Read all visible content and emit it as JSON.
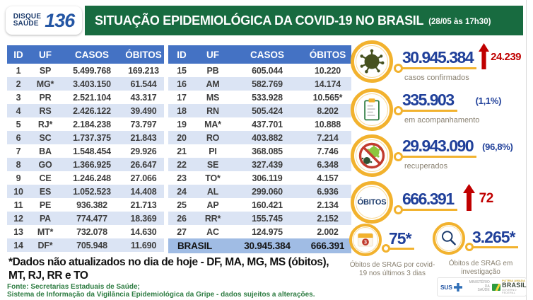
{
  "header": {
    "logo": {
      "line1": "DISQUE",
      "line2": "SAÚDE",
      "number": "136"
    },
    "title": "SITUAÇÃO EPIDEMIOLÓGICA DA COVID-19 NO BRASIL",
    "timestamp": "(28/05 às 17h30)"
  },
  "table": {
    "headers": [
      "ID",
      "UF",
      "CASOS",
      "ÓBITOS"
    ],
    "left_rows": [
      {
        "id": "1",
        "uf": "SP",
        "casos": "5.499.768",
        "obitos": "169.213"
      },
      {
        "id": "2",
        "uf": "MG*",
        "casos": "3.403.150",
        "obitos": "61.544"
      },
      {
        "id": "3",
        "uf": "PR",
        "casos": "2.521.104",
        "obitos": "43.317"
      },
      {
        "id": "4",
        "uf": "RS",
        "casos": "2.426.122",
        "obitos": "39.490"
      },
      {
        "id": "5",
        "uf": "RJ*",
        "casos": "2.184.238",
        "obitos": "73.797"
      },
      {
        "id": "6",
        "uf": "SC",
        "casos": "1.737.375",
        "obitos": "21.843"
      },
      {
        "id": "7",
        "uf": "BA",
        "casos": "1.548.454",
        "obitos": "29.926"
      },
      {
        "id": "8",
        "uf": "GO",
        "casos": "1.366.925",
        "obitos": "26.647"
      },
      {
        "id": "9",
        "uf": "CE",
        "casos": "1.246.248",
        "obitos": "27.066"
      },
      {
        "id": "10",
        "uf": "ES",
        "casos": "1.052.523",
        "obitos": "14.408"
      },
      {
        "id": "11",
        "uf": "PE",
        "casos": "936.382",
        "obitos": "21.713"
      },
      {
        "id": "12",
        "uf": "PA",
        "casos": "774.477",
        "obitos": "18.369"
      },
      {
        "id": "13",
        "uf": "MT*",
        "casos": "732.078",
        "obitos": "14.630"
      },
      {
        "id": "14",
        "uf": "DF*",
        "casos": "705.948",
        "obitos": "11.690"
      }
    ],
    "right_rows": [
      {
        "id": "15",
        "uf": "PB",
        "casos": "605.044",
        "obitos": "10.220"
      },
      {
        "id": "16",
        "uf": "AM",
        "casos": "582.769",
        "obitos": "14.174"
      },
      {
        "id": "17",
        "uf": "MS",
        "casos": "533.928",
        "obitos": "10.565*"
      },
      {
        "id": "18",
        "uf": "RN",
        "casos": "505.424",
        "obitos": "8.202"
      },
      {
        "id": "19",
        "uf": "MA*",
        "casos": "437.701",
        "obitos": "10.888"
      },
      {
        "id": "20",
        "uf": "RO",
        "casos": "403.882",
        "obitos": "7.214"
      },
      {
        "id": "21",
        "uf": "PI",
        "casos": "368.085",
        "obitos": "7.746"
      },
      {
        "id": "22",
        "uf": "SE",
        "casos": "327.439",
        "obitos": "6.348"
      },
      {
        "id": "23",
        "uf": "TO*",
        "casos": "306.119",
        "obitos": "4.157"
      },
      {
        "id": "24",
        "uf": "AL",
        "casos": "299.060",
        "obitos": "6.936"
      },
      {
        "id": "25",
        "uf": "AP",
        "casos": "160.421",
        "obitos": "2.134"
      },
      {
        "id": "26",
        "uf": "RR*",
        "casos": "155.745",
        "obitos": "2.152"
      },
      {
        "id": "27",
        "uf": "AC",
        "casos": "124.975",
        "obitos": "2.002"
      }
    ],
    "total": {
      "label": "BRASIL",
      "casos": "30.945.384",
      "obitos": "666.391"
    }
  },
  "stats": {
    "confirmed": {
      "value": "30.945.384",
      "delta": "24.239",
      "label": "casos confirmados"
    },
    "monitoring": {
      "value": "335.903",
      "percent": "(1,1%)",
      "label": "em acompanhamento"
    },
    "recovered": {
      "value": "29.943.090",
      "percent": "(96,8%)",
      "label": "recuperados"
    },
    "deaths": {
      "icon_label": "ÓBITOS",
      "value": "666.391",
      "delta": "72"
    },
    "srag_deaths": {
      "value": "75*",
      "badge": "3",
      "label": "Óbitos de SRAG por covid-19 nos últimos 3 dias"
    },
    "srag_investigation": {
      "value": "3.265*",
      "label": "Óbitos de SRAG em investigação"
    }
  },
  "footnote": {
    "line1": "*Dados não atualizados no dia de hoje - DF, MA, MG, MS (óbitos),",
    "line2": "MT, RJ, RR e TO"
  },
  "source": {
    "line1": "Fonte: Secretarias Estaduais de Saúde;",
    "line2": "Sistema de Informação da Vigilância Epidemiológica da Gripe - dados sujeitos a alterações."
  },
  "gov": {
    "sus": "SUS",
    "ministry_line1": "MINISTÉRIO DA",
    "ministry_line2": "SAÚDE",
    "brand_top": "PÁTRIA AMADA",
    "brand": "BRASIL",
    "brand_bottom": "GOVERNO FEDERAL"
  },
  "colors": {
    "banner_green": "#186b40",
    "table_header_blue": "#4472c4",
    "row_stripe_blue": "#dbe4f4",
    "total_row_blue": "#a0bce4",
    "number_navy": "#20409a",
    "alert_red": "#c00000",
    "accent_yellow": "#f2b22e",
    "source_green": "#2f7d43"
  },
  "chart_data": {
    "type": "table",
    "title": "SITUAÇÃO EPIDEMIOLÓGICA DA COVID-19 NO BRASIL (28/05 às 17h30)",
    "columns": [
      "ID",
      "UF",
      "CASOS",
      "ÓBITOS"
    ],
    "rows": [
      [
        1,
        "SP",
        "5.499.768",
        "169.213"
      ],
      [
        2,
        "MG*",
        "3.403.150",
        "61.544"
      ],
      [
        3,
        "PR",
        "2.521.104",
        "43.317"
      ],
      [
        4,
        "RS",
        "2.426.122",
        "39.490"
      ],
      [
        5,
        "RJ*",
        "2.184.238",
        "73.797"
      ],
      [
        6,
        "SC",
        "1.737.375",
        "21.843"
      ],
      [
        7,
        "BA",
        "1.548.454",
        "29.926"
      ],
      [
        8,
        "GO",
        "1.366.925",
        "26.647"
      ],
      [
        9,
        "CE",
        "1.246.248",
        "27.066"
      ],
      [
        10,
        "ES",
        "1.052.523",
        "14.408"
      ],
      [
        11,
        "PE",
        "936.382",
        "21.713"
      ],
      [
        12,
        "PA",
        "774.477",
        "18.369"
      ],
      [
        13,
        "MT*",
        "732.078",
        "14.630"
      ],
      [
        14,
        "DF*",
        "705.948",
        "11.690"
      ],
      [
        15,
        "PB",
        "605.044",
        "10.220"
      ],
      [
        16,
        "AM",
        "582.769",
        "14.174"
      ],
      [
        17,
        "MS",
        "533.928",
        "10.565*"
      ],
      [
        18,
        "RN",
        "505.424",
        "8.202"
      ],
      [
        19,
        "MA*",
        "437.701",
        "10.888"
      ],
      [
        20,
        "RO",
        "403.882",
        "7.214"
      ],
      [
        21,
        "PI",
        "368.085",
        "7.746"
      ],
      [
        22,
        "SE",
        "327.439",
        "6.348"
      ],
      [
        23,
        "TO*",
        "306.119",
        "4.157"
      ],
      [
        24,
        "AL",
        "299.060",
        "6.936"
      ],
      [
        25,
        "AP",
        "160.421",
        "2.134"
      ],
      [
        26,
        "RR*",
        "155.745",
        "2.152"
      ],
      [
        27,
        "AC",
        "124.975",
        "2.002"
      ]
    ],
    "total_row": [
      "BRASIL",
      "30.945.384",
      "666.391"
    ],
    "summary": {
      "casos_confirmados": "30.945.384",
      "casos_confirmados_delta": "+24.239",
      "em_acompanhamento": "335.903 (1,1%)",
      "recuperados": "29.943.090 (96,8%)",
      "obitos": "666.391",
      "obitos_delta": "+72",
      "obitos_srag_covid_ultimos_3_dias": "75*",
      "obitos_srag_em_investigacao": "3.265*"
    }
  }
}
